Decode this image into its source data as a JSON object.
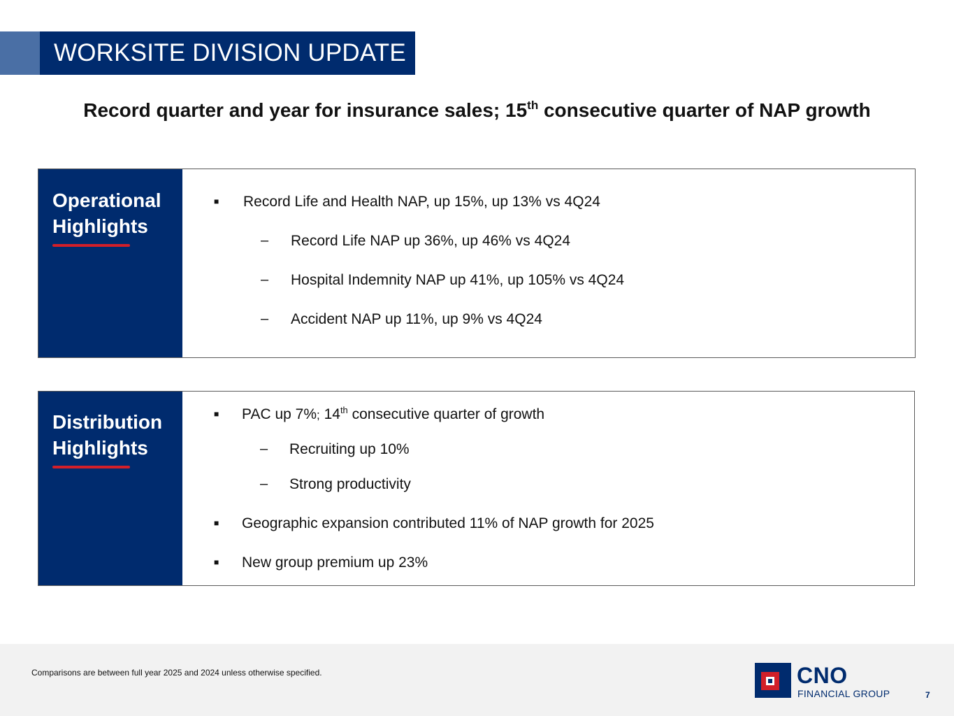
{
  "slide": {
    "title": "WORKSITE DIVISION UPDATE",
    "subtitle_pre": "Record quarter and year for insurance sales; 15",
    "subtitle_sup": "th",
    "subtitle_post": " consecutive quarter of NAP growth"
  },
  "operational": {
    "heading": "Operational Highlights",
    "items": [
      {
        "text": "Record Life and Health NAP, up 15%, up 13% vs 4Q24"
      },
      {
        "text": "Record Life NAP up 36%, up 46% vs 4Q24"
      },
      {
        "text": "Hospital Indemnity NAP up 41%, up 105% vs 4Q24"
      },
      {
        "text": "Accident NAP up 11%, up 9% vs 4Q24"
      }
    ]
  },
  "distribution": {
    "heading": "Distribution Highlights",
    "items": [
      {
        "pre": "PAC up 7%",
        "semi": ";",
        "mid": " 14",
        "sup": "th",
        "post": " consecutive quarter of growth"
      },
      {
        "text": "Recruiting up 10%"
      },
      {
        "text": "Strong productivity"
      },
      {
        "text": "Geographic expansion contributed 11% of NAP growth for 2025"
      },
      {
        "text": "New group premium up 23%"
      }
    ]
  },
  "markers": {
    "bullet": "■",
    "dash": "–"
  },
  "footer": {
    "footnote": "Comparisons are between full year 2025 and 2024 unless otherwise specified.",
    "logo_name": "CNO",
    "logo_sub": "FINANCIAL GROUP",
    "page_number": "7"
  },
  "colors": {
    "navy": "#002b6e",
    "accent_blue": "#4a6fa5",
    "red": "#d21f29"
  }
}
